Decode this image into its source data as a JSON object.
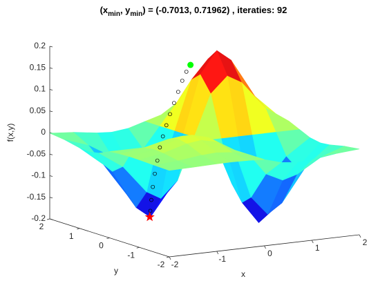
{
  "chart_data": {
    "type": "surface",
    "title": [
      {
        "text": "(x"
      },
      {
        "text": "min",
        "sub": true
      },
      {
        "text": ", y"
      },
      {
        "text": "min",
        "sub": true
      },
      {
        "text": ") = (-0.7013, 0.71962) , iteraties: 92"
      }
    ],
    "xlabel": "x",
    "ylabel": "y",
    "zlabel": "f(x,y)",
    "x": [
      -2,
      -1.5,
      -1,
      -0.7,
      -0.35,
      0,
      0.35,
      0.7,
      1,
      1.5,
      2
    ],
    "y": [
      -2,
      -1.5,
      -1,
      -0.7,
      -0.35,
      0,
      0.35,
      0.7,
      1,
      1.5,
      2
    ],
    "z": [
      [
        0.0003,
        0.0012,
        0.0027,
        0.0031,
        0.0023,
        0,
        -0.0113,
        -0.0157,
        -0.0135,
        -0.0058,
        -0.0013
      ],
      [
        0.0012,
        0.005,
        0.0116,
        0.0136,
        0.0098,
        0,
        -0.0489,
        -0.0678,
        -0.0582,
        -0.025,
        -0.0058
      ],
      [
        0.0027,
        0.0116,
        0.0271,
        0.0316,
        0.0228,
        0,
        -0.1139,
        -0.1578,
        -0.1353,
        -0.0582,
        -0.0135
      ],
      [
        0.0031,
        0.0136,
        0.0316,
        0.0368,
        0.0266,
        0,
        -0.1328,
        -0.1839,
        -0.1578,
        -0.0678,
        -0.0157
      ],
      [
        0.0023,
        0.0098,
        0.0228,
        0.0266,
        0.0192,
        0,
        -0.0959,
        -0.1328,
        -0.1139,
        -0.0489,
        -0.0113
      ],
      [
        0,
        0,
        0,
        0,
        0,
        0,
        0,
        0,
        0,
        0,
        0
      ],
      [
        -0.0113,
        -0.0489,
        -0.1139,
        -0.1328,
        -0.0959,
        0,
        0.0959,
        0.1328,
        0.1139,
        0.0489,
        0.0113
      ],
      [
        -0.0157,
        -0.0678,
        -0.1578,
        -0.1839,
        -0.1328,
        0,
        0.1328,
        0.1839,
        0.1578,
        0.0678,
        0.0157
      ],
      [
        -0.0135,
        -0.0582,
        -0.1353,
        -0.1578,
        -0.1139,
        0,
        0.1139,
        0.1578,
        0.1353,
        0.0582,
        0.0135
      ],
      [
        -0.0058,
        -0.025,
        -0.0582,
        -0.0678,
        -0.0489,
        0,
        0.0489,
        0.0678,
        0.0582,
        0.025,
        0.0058
      ],
      [
        -0.0013,
        -0.0058,
        -0.0135,
        -0.0157,
        -0.0113,
        0,
        0.0113,
        0.0157,
        0.0135,
        0.0058,
        0.0013
      ]
    ],
    "path": {
      "x": [
        0.1,
        0.02,
        -0.06,
        -0.14,
        -0.22,
        -0.3,
        -0.37,
        -0.44,
        -0.5,
        -0.55,
        -0.6,
        -0.64,
        -0.67,
        -0.69,
        -0.7013
      ],
      "y": [
        0.63,
        0.64,
        0.65,
        0.66,
        0.67,
        0.68,
        0.69,
        0.695,
        0.7,
        0.705,
        0.71,
        0.713,
        0.716,
        0.718,
        0.71962
      ],
      "z": [
        0.16,
        0.145,
        0.125,
        0.1,
        0.075,
        0.05,
        0.025,
        0,
        -0.025,
        -0.055,
        -0.085,
        -0.115,
        -0.145,
        -0.17,
        -0.184
      ]
    },
    "start_color": "#00ff00",
    "min_color": "#ff0000",
    "xlim": [
      -2,
      2
    ],
    "ylim": [
      -2,
      2
    ],
    "zlim": [
      -0.2,
      0.2
    ],
    "xticks": [
      -2,
      -1,
      0,
      1,
      2
    ],
    "yticks": [
      -2,
      -1,
      0,
      1,
      2
    ],
    "zticks": [
      -0.2,
      -0.15,
      -0.1,
      -0.05,
      0,
      0.05,
      0.1,
      0.15,
      0.2
    ],
    "grid": false
  }
}
